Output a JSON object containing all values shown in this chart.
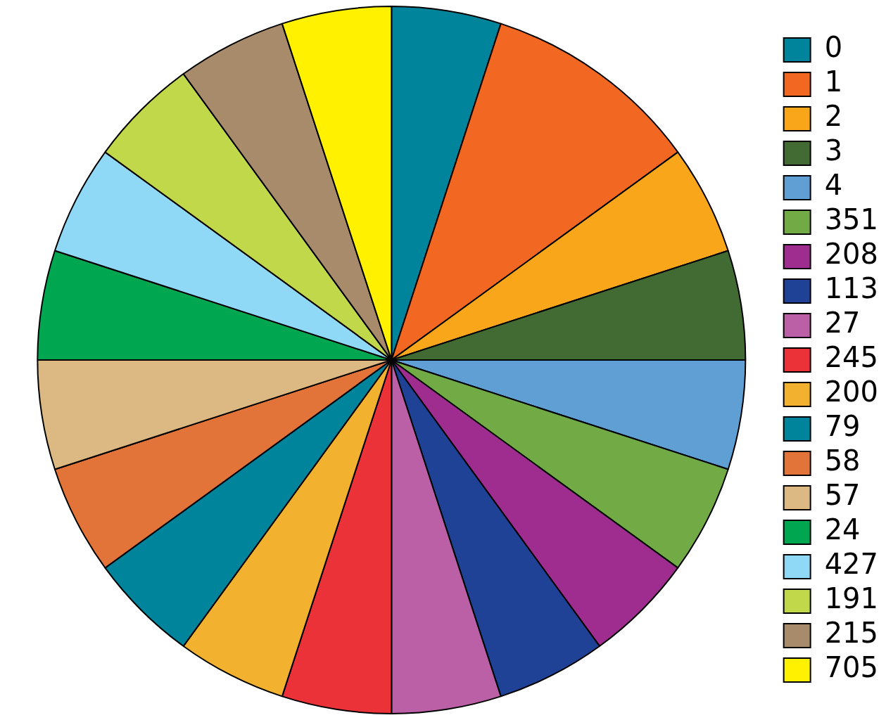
{
  "chart_data": {
    "type": "pie",
    "categories": [
      "0",
      "1",
      "2",
      "3",
      "4",
      "351",
      "208",
      "113",
      "27",
      "245",
      "200",
      "79",
      "58",
      "57",
      "24",
      "427",
      "191",
      "215",
      "705"
    ],
    "values": [
      5,
      10,
      5,
      5,
      5,
      5,
      5,
      5,
      5,
      5,
      5,
      5,
      5,
      5,
      5,
      5,
      5,
      5,
      5
    ],
    "colors": [
      "#00849c",
      "#f26722",
      "#f9a61a",
      "#426a33",
      "#5f9fd4",
      "#72ab46",
      "#9e2d8f",
      "#1f4196",
      "#bb60a7",
      "#ec3239",
      "#f2b12e",
      "#00849c",
      "#e37439",
      "#dcb983",
      "#00a650",
      "#8fd8f6",
      "#c0d84a",
      "#a78b6a",
      "#fff100"
    ],
    "legend": "right"
  }
}
